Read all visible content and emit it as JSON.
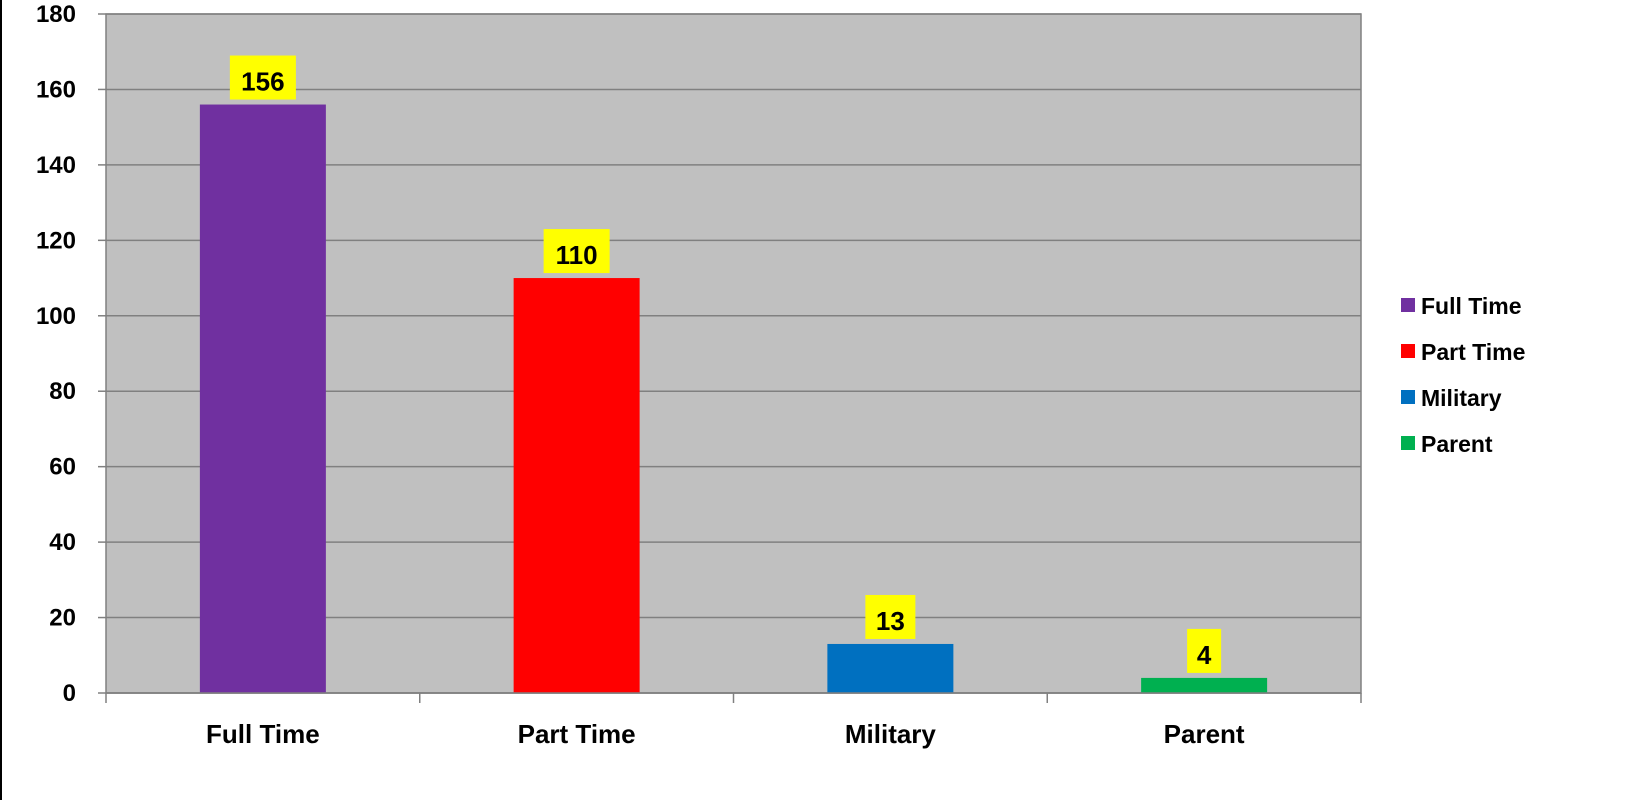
{
  "chart_data": {
    "type": "bar",
    "categories": [
      "Full Time",
      "Part Time",
      "Military",
      "Parent"
    ],
    "values": [
      156,
      110,
      13,
      4
    ],
    "colors": [
      "#7030A0",
      "#FF0000",
      "#0070C0",
      "#00B050"
    ],
    "data_label_color": "#FFFF00",
    "plot_background": "#C0C0C0",
    "ylim": [
      0,
      180
    ],
    "yticks": [
      0,
      20,
      40,
      60,
      80,
      100,
      120,
      140,
      160,
      180
    ],
    "ytick_labels": [
      "0",
      "20",
      "40",
      "60",
      "80",
      "100",
      "120",
      "140",
      "160",
      "180"
    ],
    "grid": true,
    "legend": {
      "placement": "right",
      "entries": [
        "Full Time",
        "Part Time",
        "Military",
        "Parent"
      ]
    },
    "title": "",
    "xlabel": "",
    "ylabel": ""
  }
}
